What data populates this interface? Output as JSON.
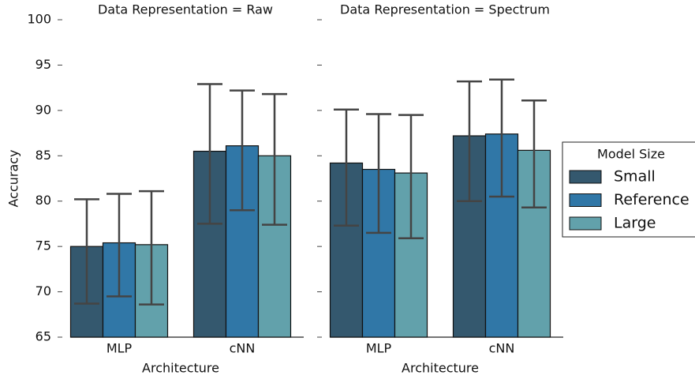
{
  "chart_data": [
    {
      "type": "bar",
      "title": "Data Representation = Raw",
      "xlabel": "Architecture",
      "ylabel": "Accuracy",
      "categories": [
        "MLP",
        "cNN"
      ],
      "series": [
        {
          "name": "Small",
          "color": "#34586e",
          "values": [
            75.0,
            85.5
          ],
          "ci_low": [
            68.7,
            77.5
          ],
          "ci_high": [
            80.2,
            92.9
          ]
        },
        {
          "name": "Reference",
          "color": "#3077a7",
          "values": [
            75.4,
            86.1
          ],
          "ci_low": [
            69.5,
            79.0
          ],
          "ci_high": [
            80.8,
            92.2
          ]
        },
        {
          "name": "Large",
          "color": "#62a1ab",
          "values": [
            75.2,
            85.0
          ],
          "ci_low": [
            68.6,
            77.4
          ],
          "ci_high": [
            81.1,
            91.8
          ]
        }
      ],
      "ylim": [
        65,
        100
      ],
      "yticks": [
        65,
        70,
        75,
        80,
        85,
        90,
        95,
        100
      ]
    },
    {
      "type": "bar",
      "title": "Data Representation = Spectrum",
      "xlabel": "Architecture",
      "categories": [
        "MLP",
        "cNN"
      ],
      "series": [
        {
          "name": "Small",
          "color": "#34586e",
          "values": [
            84.2,
            87.2
          ],
          "ci_low": [
            77.3,
            80.0
          ],
          "ci_high": [
            90.1,
            93.2
          ]
        },
        {
          "name": "Reference",
          "color": "#3077a7",
          "values": [
            83.5,
            87.4
          ],
          "ci_low": [
            76.5,
            80.5
          ],
          "ci_high": [
            89.6,
            93.4
          ]
        },
        {
          "name": "Large",
          "color": "#62a1ab",
          "values": [
            83.1,
            85.6
          ],
          "ci_low": [
            75.9,
            79.3
          ],
          "ci_high": [
            89.5,
            91.1
          ]
        }
      ],
      "ylim": [
        65,
        100
      ],
      "yticks": [
        65,
        70,
        75,
        80,
        85,
        90,
        95,
        100
      ],
      "legend_title": "Model Size",
      "legend": "right"
    }
  ]
}
